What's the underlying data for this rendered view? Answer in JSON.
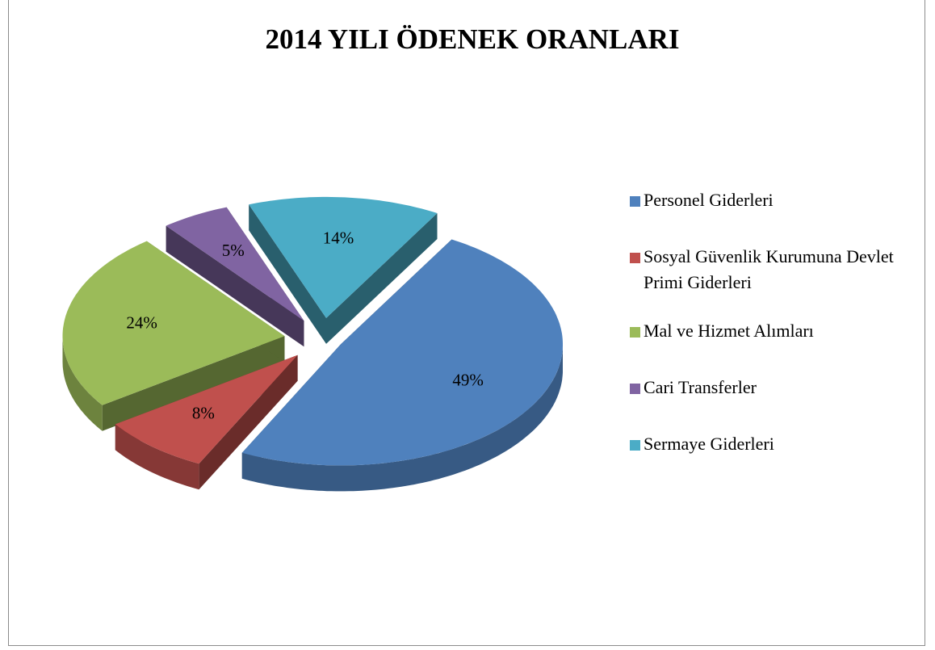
{
  "chart_data": {
    "type": "pie",
    "title": "2014 YILI ÖDENEK ORANLARI",
    "categories": [
      "Personel Giderleri",
      "Sosyal Güvenlik Kurumuna Devlet Primi Giderleri",
      "Mal ve Hizmet Alımları",
      "Cari Transferler",
      "Sermaye Giderleri"
    ],
    "values": [
      49,
      8,
      24,
      5,
      14
    ],
    "value_labels": [
      "49%",
      "8%",
      "24%",
      "5%",
      "14%"
    ],
    "colors": [
      "#4f81bd",
      "#c0504d",
      "#9bbb59",
      "#8064a2",
      "#4bacc6"
    ],
    "legend": "right"
  }
}
